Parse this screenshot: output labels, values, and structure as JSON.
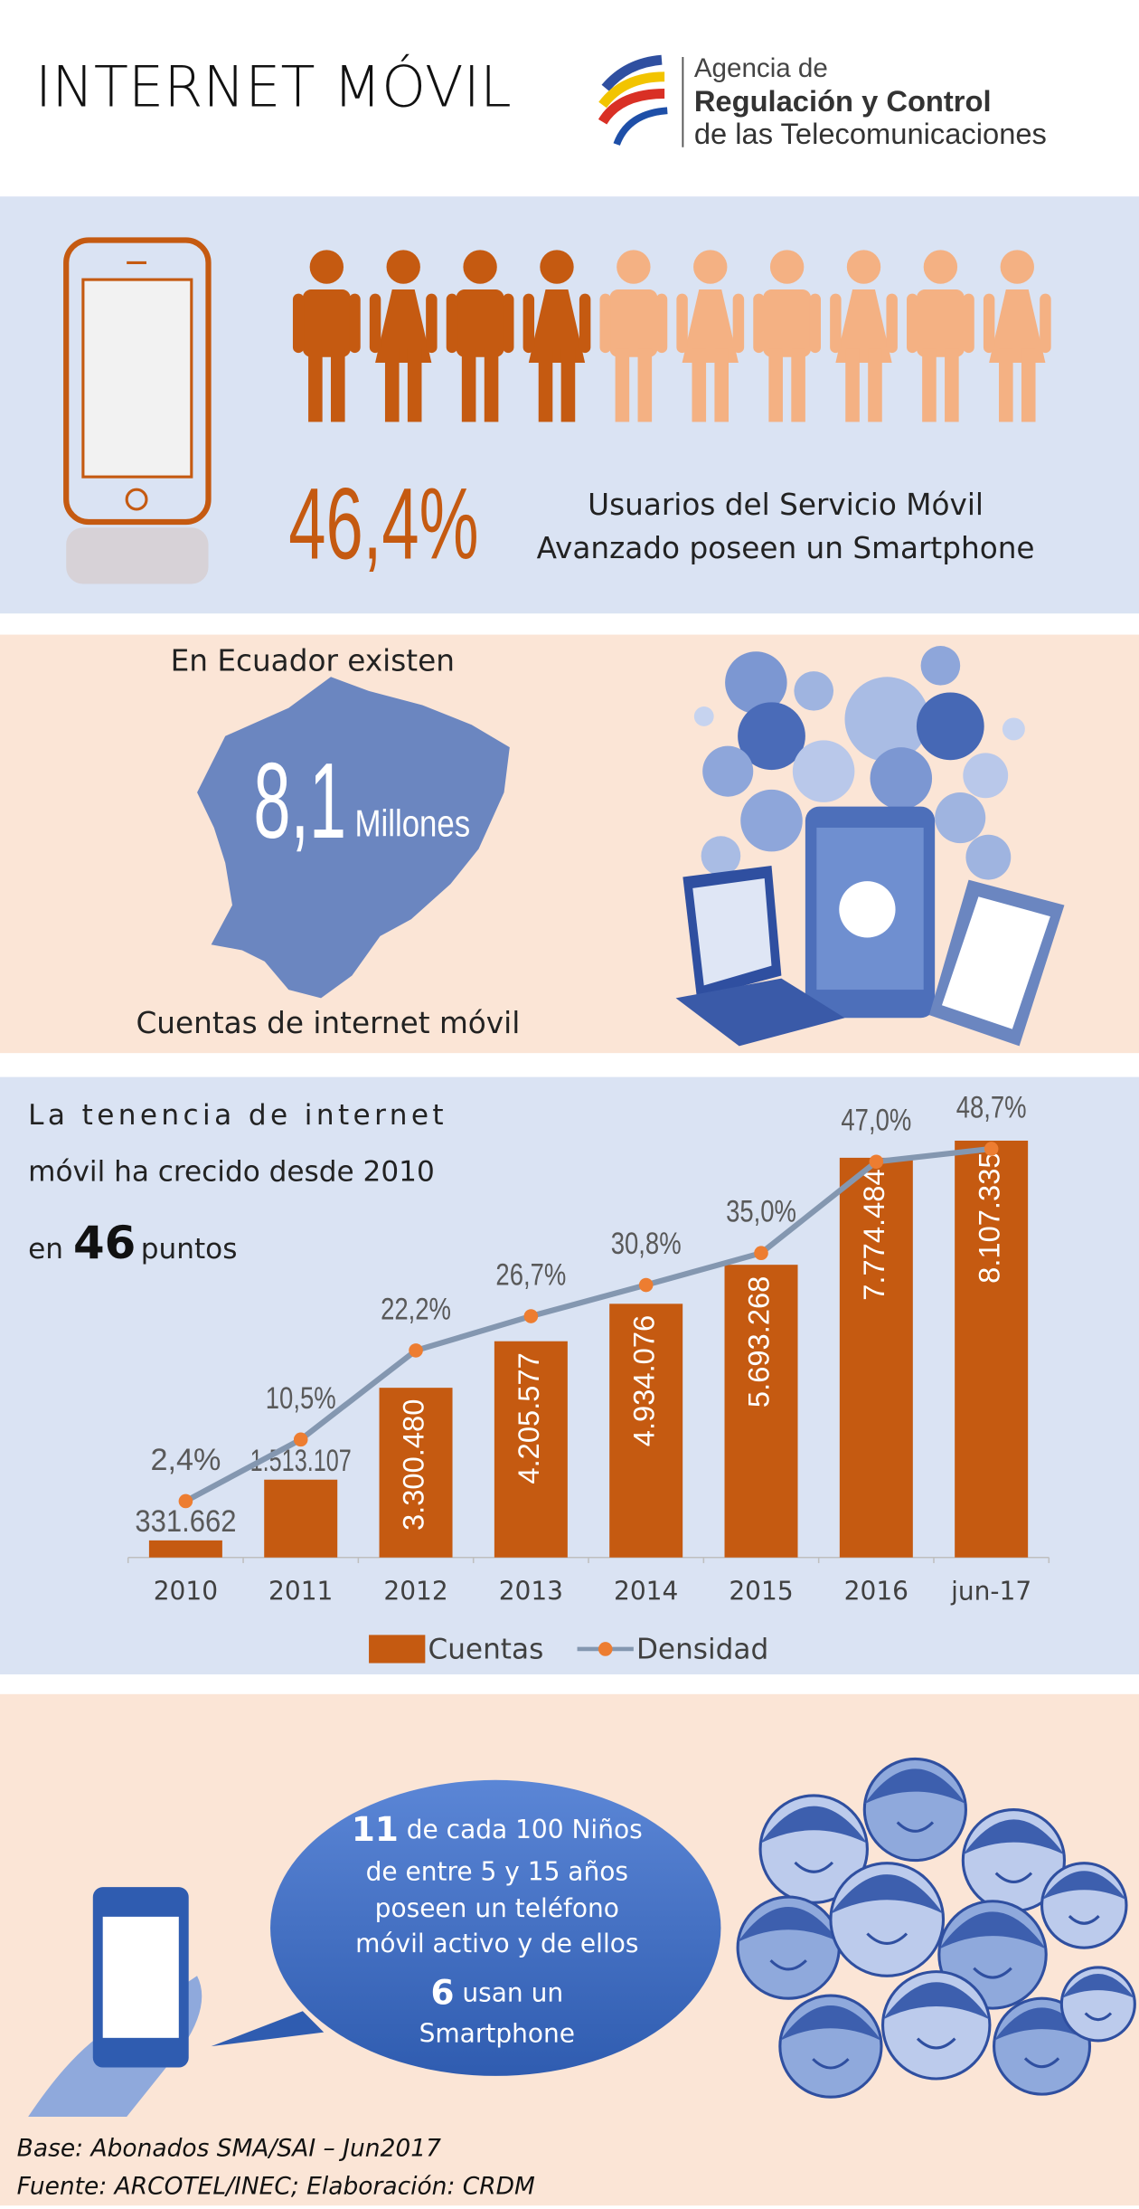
{
  "header": {
    "title": "INTERNET MÓVIL",
    "agency": [
      "Agencia de",
      "Regulación y Control",
      "de las Telecomunicaciones"
    ]
  },
  "smartphone": {
    "percent": "46,4%",
    "caption": [
      "Usuarios del Servicio Móvil",
      "Avanzado poseen un Smartphone"
    ]
  },
  "accounts": {
    "intro": "En Ecuador existen",
    "number": "8,1",
    "unit": "Millones",
    "caption": "Cuentas de internet móvil"
  },
  "growth": {
    "lines": [
      "La tenencia de internet",
      "móvil ha crecido desde 2010"
    ],
    "prefix": "en",
    "number": "46",
    "suffix": "puntos"
  },
  "chart_data": {
    "type": "bar-line",
    "categories": [
      "2010",
      "2011",
      "2012",
      "2013",
      "2014",
      "2015",
      "2016",
      "jun-17"
    ],
    "series": [
      {
        "name": "Cuentas",
        "type": "bar",
        "color": "#c55a11",
        "values": [
          331662,
          1513107,
          3300480,
          4205577,
          4934076,
          5693268,
          7774484,
          8107335
        ],
        "value_labels": [
          "331.662",
          "1.513.107",
          "3.300.480",
          "4.205.577",
          "4.934.076",
          "5.693.268",
          "7.774.484",
          "8.107.335"
        ]
      },
      {
        "name": "Densidad",
        "type": "line",
        "axis": "y2",
        "color": "#ed7d31",
        "line_color": "#8497b0",
        "values": [
          2.4,
          10.5,
          22.2,
          26.7,
          30.8,
          35.0,
          47.0,
          48.7
        ],
        "value_labels": [
          "2,4%",
          "10,5%",
          "22,2%",
          "26,7%",
          "30,8%",
          "35,0%",
          "47,0%",
          "48,7%"
        ]
      }
    ],
    "ylim": [
      0,
      9400000
    ],
    "y2lim": [
      -5,
      58.5
    ],
    "grid": false,
    "legend": "bottom"
  },
  "children": {
    "first_number": "11",
    "first_rest": " de cada 100 Niños",
    "lines": [
      "de entre 5 y 15 años",
      "poseen un teléfono",
      "móvil activo y de ellos"
    ],
    "second_number": "6",
    "second_rest": " usan un",
    "last": "Smartphone"
  },
  "footer": [
    "Base: Abonados SMA/SAI – Jun2017",
    "Fuente: ARCOTEL/INEC; Elaboración: CRDM"
  ]
}
